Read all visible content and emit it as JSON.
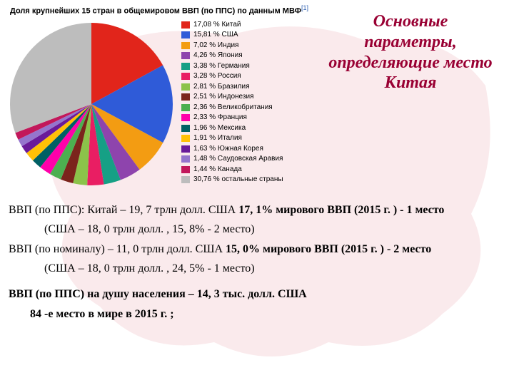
{
  "background": {
    "map_color": "#f2c4c9"
  },
  "chart": {
    "type": "pie",
    "title_html": "Доля крупнейших 15 стран в общемировом ВВП (по ППС) по данным МВФ",
    "title_ref": "[1]",
    "title_fontsize": 11,
    "legend_fontsize": 10,
    "background_color": "#ffffff",
    "slices": [
      {
        "pct": 17.08,
        "label": "17,08 % Китай",
        "color": "#e1251b"
      },
      {
        "pct": 15.81,
        "label": "15,81 % США",
        "color": "#2f5bd8"
      },
      {
        "pct": 7.02,
        "label": "7,02 % Индия",
        "color": "#f39c12"
      },
      {
        "pct": 4.26,
        "label": "4,26 % Япония",
        "color": "#8e44ad"
      },
      {
        "pct": 3.38,
        "label": "3,38 % Германия",
        "color": "#16a085"
      },
      {
        "pct": 3.28,
        "label": "3,28 % Россия",
        "color": "#e91e63"
      },
      {
        "pct": 2.81,
        "label": "2,81 % Бразилия",
        "color": "#8bc34a"
      },
      {
        "pct": 2.51,
        "label": "2,51 % Индонезия",
        "color": "#7b241c"
      },
      {
        "pct": 2.36,
        "label": "2,36 % Великобритания",
        "color": "#4caf50"
      },
      {
        "pct": 2.33,
        "label": "2,33 % Франция",
        "color": "#ff00aa"
      },
      {
        "pct": 1.96,
        "label": "1,96 % Мексика",
        "color": "#006064"
      },
      {
        "pct": 1.91,
        "label": "1,91 % Италия",
        "color": "#ffc107"
      },
      {
        "pct": 1.63,
        "label": "1,63 % Южная Корея",
        "color": "#6a1b9a"
      },
      {
        "pct": 1.48,
        "label": "1,48 % Саудовская Аравия",
        "color": "#9575cd"
      },
      {
        "pct": 1.44,
        "label": "1,44 % Канада",
        "color": "#c2185b"
      },
      {
        "pct": 30.76,
        "label": "30,76 % остальные страны",
        "color": "#bdbdbd"
      }
    ]
  },
  "title": {
    "line1": "Основные",
    "line2": "параметры,",
    "line3": "определяющие место",
    "line4": "Китая",
    "color": "#990033",
    "fontsize": 24
  },
  "body": {
    "line1a": "ВВП (по ППС): Китай – 19, 7 трлн долл. США   ",
    "line1b": "17, 1% мирового ВВП (2015 г. )   -   1 место",
    "line2": "(США – 18, 0 трлн долл. , 15, 8% - 2 место)",
    "line3a": "ВВП (по номиналу) – 11, 0 трлн долл. США     ",
    "line3b": "15, 0% мирового ВВП (2015 г. )    -   2 место",
    "line4": "(США – 18, 0 трлн долл. , 24, 5% - 1 место)",
    "line5": "ВВП (по ППС) на душу населения – 14, 3 тыс. долл. США",
    "line6": "84 -е место в мире в 2015 г. ;"
  }
}
